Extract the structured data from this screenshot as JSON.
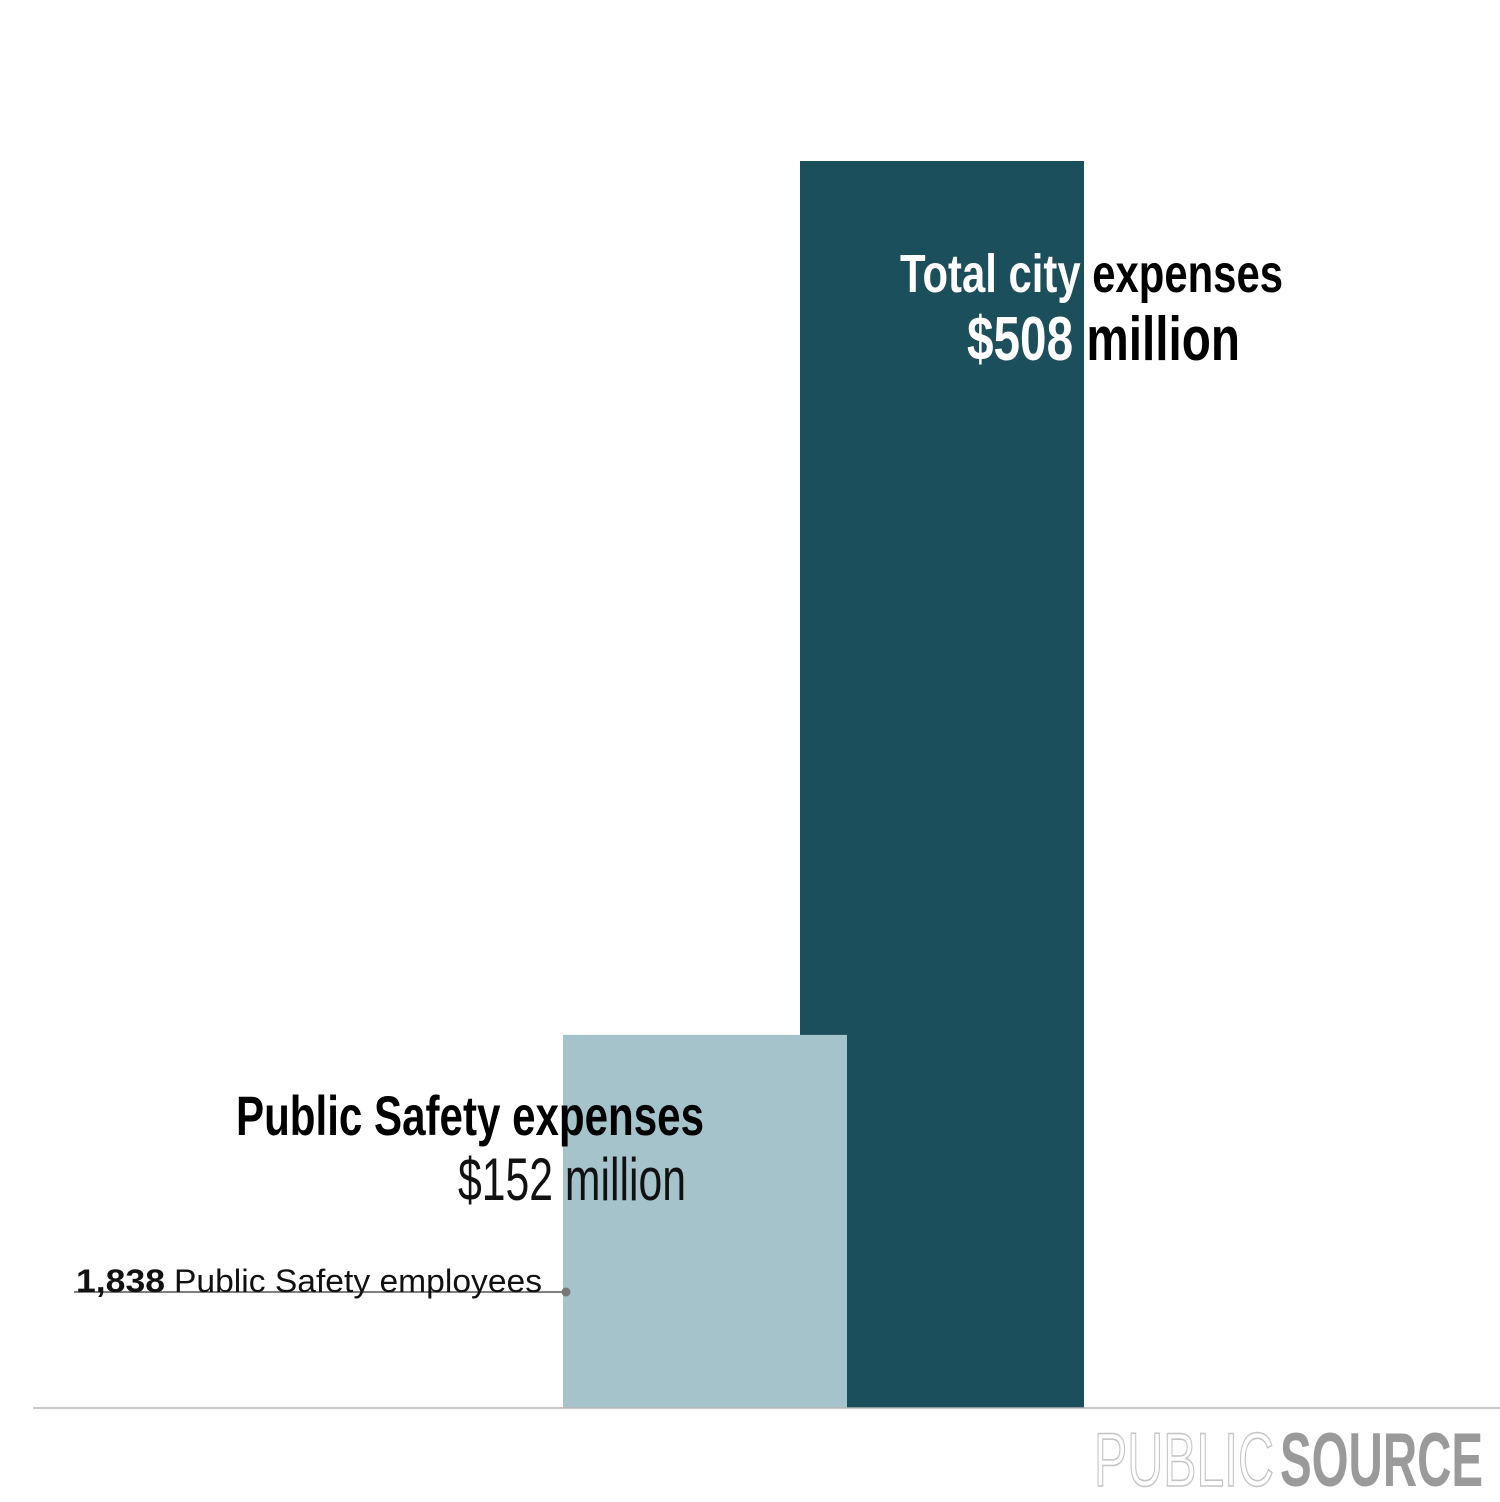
{
  "chart_data": {
    "type": "bar",
    "categories": [
      "Public Safety expenses",
      "Total city expenses"
    ],
    "values": [
      152,
      508
    ],
    "value_labels": [
      "$152 million",
      "$508 million"
    ],
    "colors": [
      "#a4c3ca",
      "#1c4f5c"
    ],
    "ylim": [
      0,
      508
    ],
    "annotation": {
      "number": "1,838",
      "text": "Public Safety employees"
    },
    "branding": [
      "PUBLIC",
      "SOURCE"
    ]
  }
}
